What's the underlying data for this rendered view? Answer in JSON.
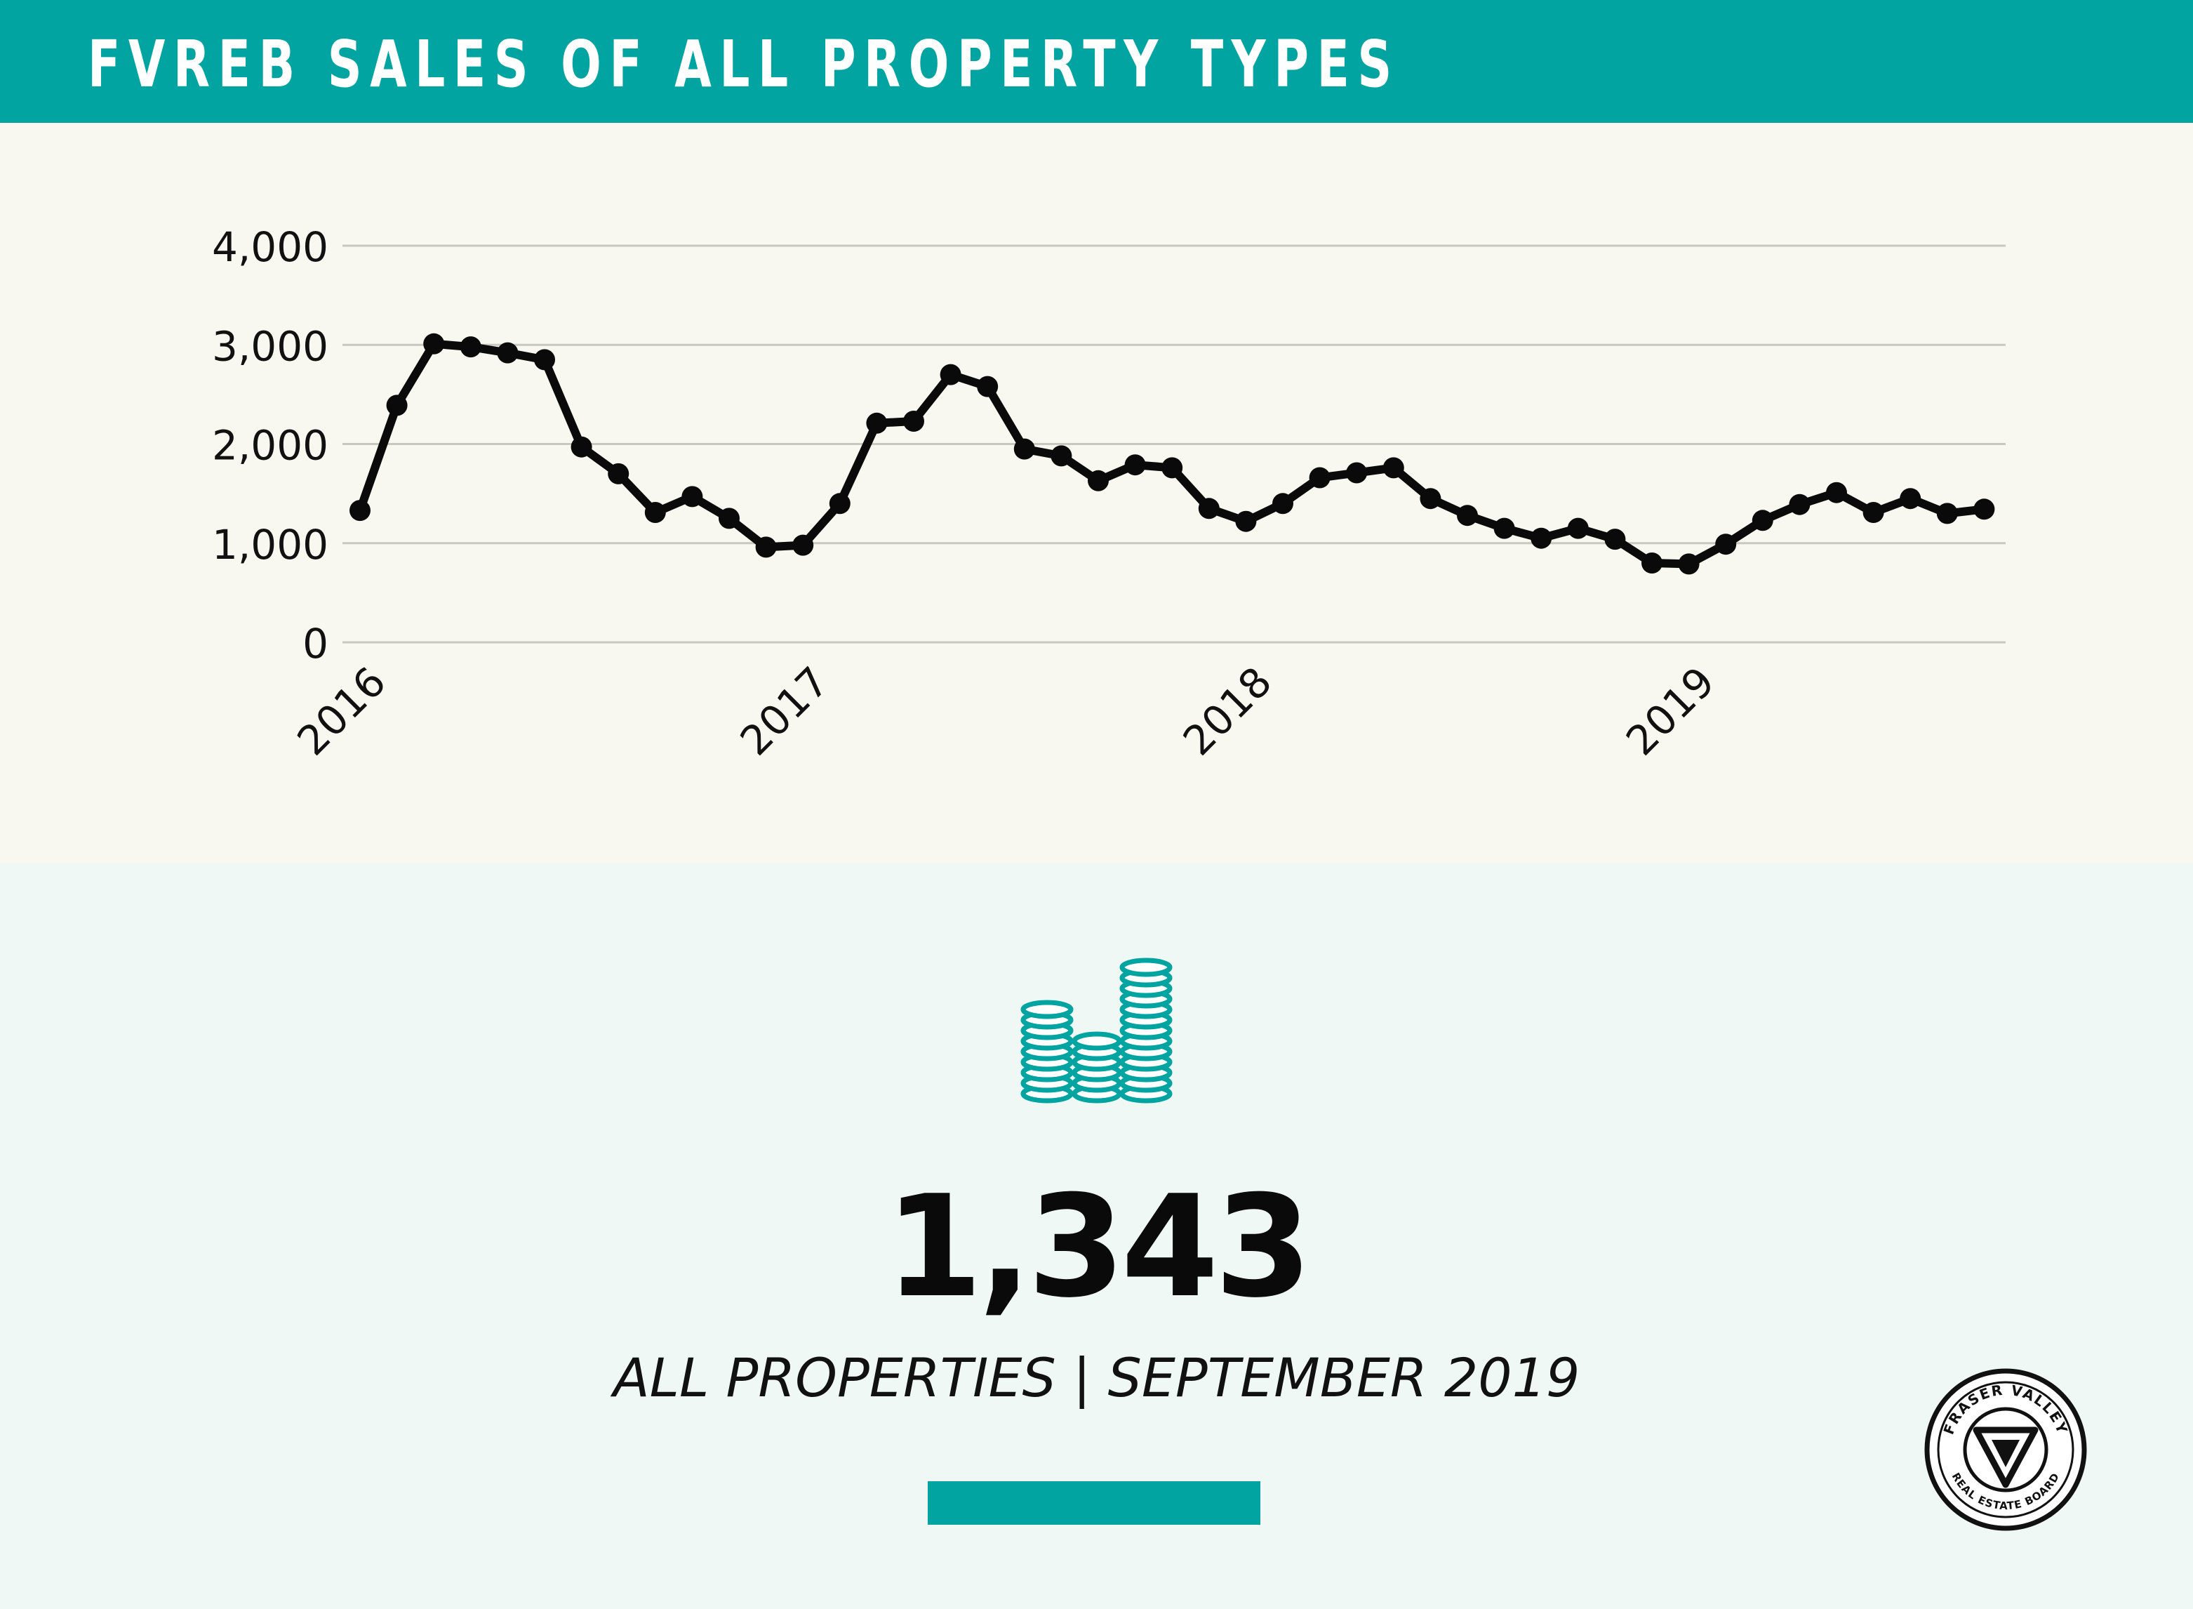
{
  "header": {
    "title": "FVREB SALES OF ALL PROPERTY TYPES"
  },
  "colors": {
    "accent": "#01a4a0",
    "line": "#0a0a0a",
    "grid": "#c8c8be",
    "chart_bg": "#f8f8f0",
    "page_bg": "#f0f8f6"
  },
  "chart_data": {
    "type": "line",
    "title": "",
    "xlabel": "",
    "ylabel": "",
    "ylim": [
      0,
      4000
    ],
    "y_ticks": [
      0,
      1000,
      2000,
      3000,
      4000
    ],
    "y_tick_labels": [
      "0",
      "1,000",
      "2,000",
      "3,000",
      "4,000"
    ],
    "x_tick_labels": [
      "2016",
      "2017",
      "2018",
      "2019"
    ],
    "grid": true,
    "series": [
      {
        "start": "2016-01",
        "values": [
          1330,
          2390,
          3010,
          2980,
          2920,
          2850,
          1970,
          1700,
          1310,
          1470,
          1250,
          960,
          980,
          1400,
          2210,
          2230,
          2700,
          2580,
          1950,
          1880,
          1630,
          1790,
          1760,
          1350,
          1220,
          1400,
          1660,
          1710,
          1760,
          1450,
          1280,
          1150,
          1050,
          1150,
          1040,
          800,
          790,
          990,
          1230,
          1390,
          1510,
          1310,
          1450,
          1300,
          1343
        ]
      }
    ]
  },
  "stats": {
    "coins_icon": "coin-stacks-icon",
    "big_number": "1,343",
    "subtitle": "ALL PROPERTIES | SEPTEMBER 2019"
  },
  "logo": {
    "icon": "fraser-valley-board-logo",
    "top_text": "FRASER VALLEY",
    "bottom_text": "REAL ESTATE BOARD"
  }
}
